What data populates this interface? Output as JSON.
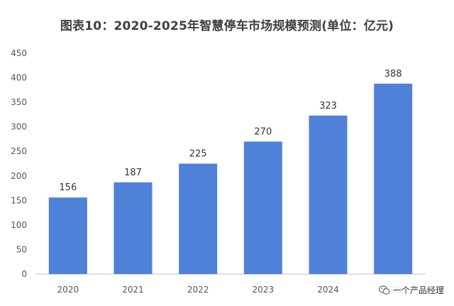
{
  "chart_data": {
    "type": "bar",
    "title": "图表10：2020-2025年智慧停车市场规模预测(单位：亿元)",
    "categories": [
      "2020",
      "2021",
      "2022",
      "2023",
      "2024",
      "2025"
    ],
    "values": [
      156,
      187,
      225,
      270,
      323,
      388
    ],
    "data_labels": [
      "156",
      "187",
      "225",
      "270",
      "323",
      "388"
    ],
    "ylim": [
      0,
      450
    ],
    "yticks": [
      0,
      50,
      100,
      150,
      200,
      250,
      300,
      350,
      400,
      450
    ],
    "xlabel": "",
    "ylabel": "",
    "grid": false,
    "bar_color": "#4f81d8",
    "axis_color": "#bfbfbf"
  },
  "source": {
    "icon": "wechat-icon",
    "text": "一个产品经理"
  }
}
